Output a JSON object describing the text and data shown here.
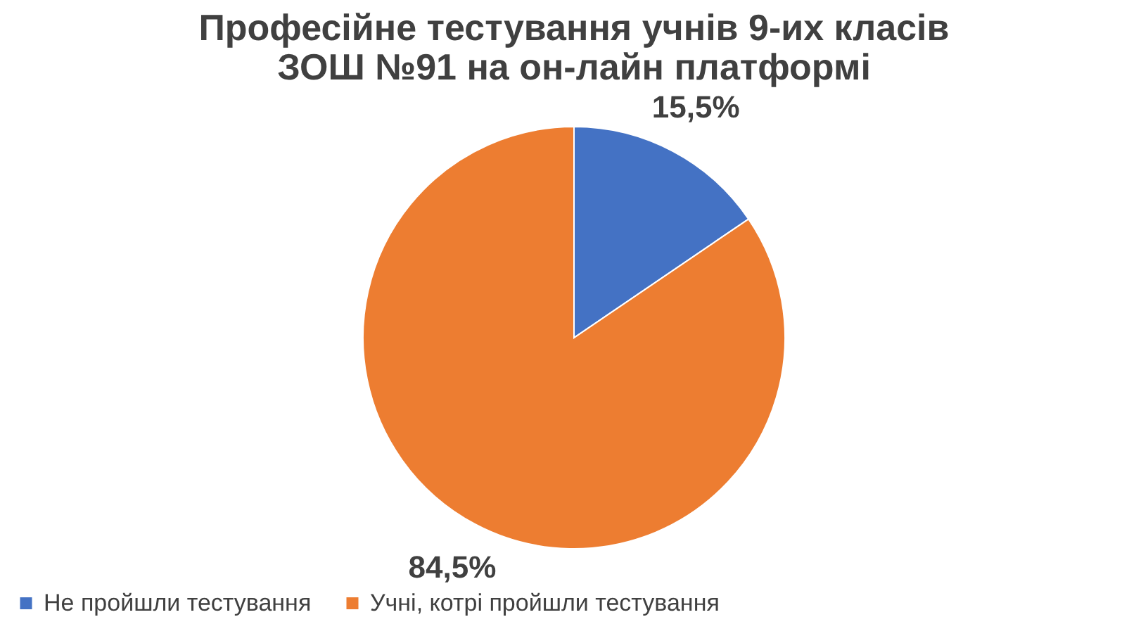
{
  "chart_data": {
    "type": "pie",
    "title": [
      "Професійне тестування учнів 9-их класів",
      "ЗОШ №91 на он-лайн платформі"
    ],
    "categories": [
      "Не пройшли тестування",
      "Учні, котрі пройшли тестування"
    ],
    "values": [
      15.5,
      84.5
    ],
    "colors": [
      "#4472c4",
      "#ed7d31"
    ],
    "value_labels": [
      "15,5%",
      "84,5%"
    ],
    "legend": "bottom"
  }
}
